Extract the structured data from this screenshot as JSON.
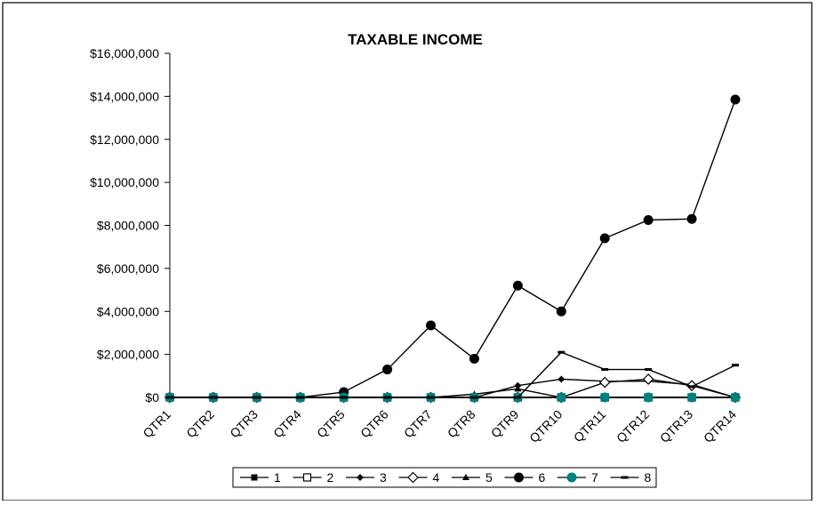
{
  "chart_data": {
    "type": "line",
    "title": "TAXABLE INCOME",
    "xlabel": "",
    "ylabel": "",
    "categories": [
      "QTR1",
      "QTR2",
      "QTR3",
      "QTR4",
      "QTR5",
      "QTR6",
      "QTR7",
      "QTR8",
      "QTR9",
      "QTR10",
      "QTR11",
      "QTR12",
      "QTR13",
      "QTR14"
    ],
    "ylim": [
      0,
      16000000
    ],
    "yticks": [
      0,
      2000000,
      4000000,
      6000000,
      8000000,
      10000000,
      12000000,
      14000000,
      16000000
    ],
    "ytick_labels": [
      "$0",
      "$2,000,000",
      "$4,000,000",
      "$6,000,000",
      "$8,000,000",
      "$10,000,000",
      "$12,000,000",
      "$14,000,000",
      "$16,000,000"
    ],
    "grid": false,
    "legend_position": "bottom",
    "series": [
      {
        "name": "1",
        "marker": "square-filled",
        "color": "#000000",
        "values": [
          0,
          0,
          0,
          0,
          0,
          0,
          0,
          0,
          0,
          0,
          0,
          0,
          0,
          0
        ]
      },
      {
        "name": "2",
        "marker": "square-open",
        "color": "#000000",
        "values": [
          0,
          0,
          0,
          0,
          0,
          0,
          0,
          0,
          0,
          0,
          0,
          0,
          0,
          0
        ]
      },
      {
        "name": "3",
        "marker": "diamond-filled",
        "color": "#000000",
        "values": [
          0,
          0,
          0,
          0,
          0,
          0,
          0,
          0,
          550000,
          850000,
          750000,
          750000,
          600000,
          0
        ]
      },
      {
        "name": "4",
        "marker": "diamond-open",
        "color": "#000000",
        "values": [
          0,
          0,
          0,
          0,
          0,
          0,
          0,
          0,
          0,
          0,
          700000,
          850000,
          550000,
          0
        ]
      },
      {
        "name": "5",
        "marker": "triangle-filled",
        "color": "#000000",
        "values": [
          0,
          0,
          0,
          0,
          0,
          0,
          0,
          150000,
          400000,
          0,
          0,
          0,
          0,
          0
        ]
      },
      {
        "name": "6",
        "marker": "circle-filled",
        "color": "#000000",
        "values": [
          0,
          0,
          0,
          0,
          250000,
          1300000,
          3350000,
          1800000,
          5200000,
          4000000,
          7400000,
          8250000,
          8300000,
          13850000
        ]
      },
      {
        "name": "7",
        "marker": "circle-filled",
        "color": "#008080",
        "values": [
          0,
          0,
          0,
          0,
          0,
          0,
          0,
          0,
          0,
          0,
          0,
          0,
          0,
          0
        ]
      },
      {
        "name": "8",
        "marker": "dash",
        "color": "#000000",
        "values": [
          0,
          0,
          0,
          0,
          0,
          0,
          0,
          0,
          0,
          2100000,
          1300000,
          1300000,
          500000,
          1500000
        ]
      }
    ]
  }
}
